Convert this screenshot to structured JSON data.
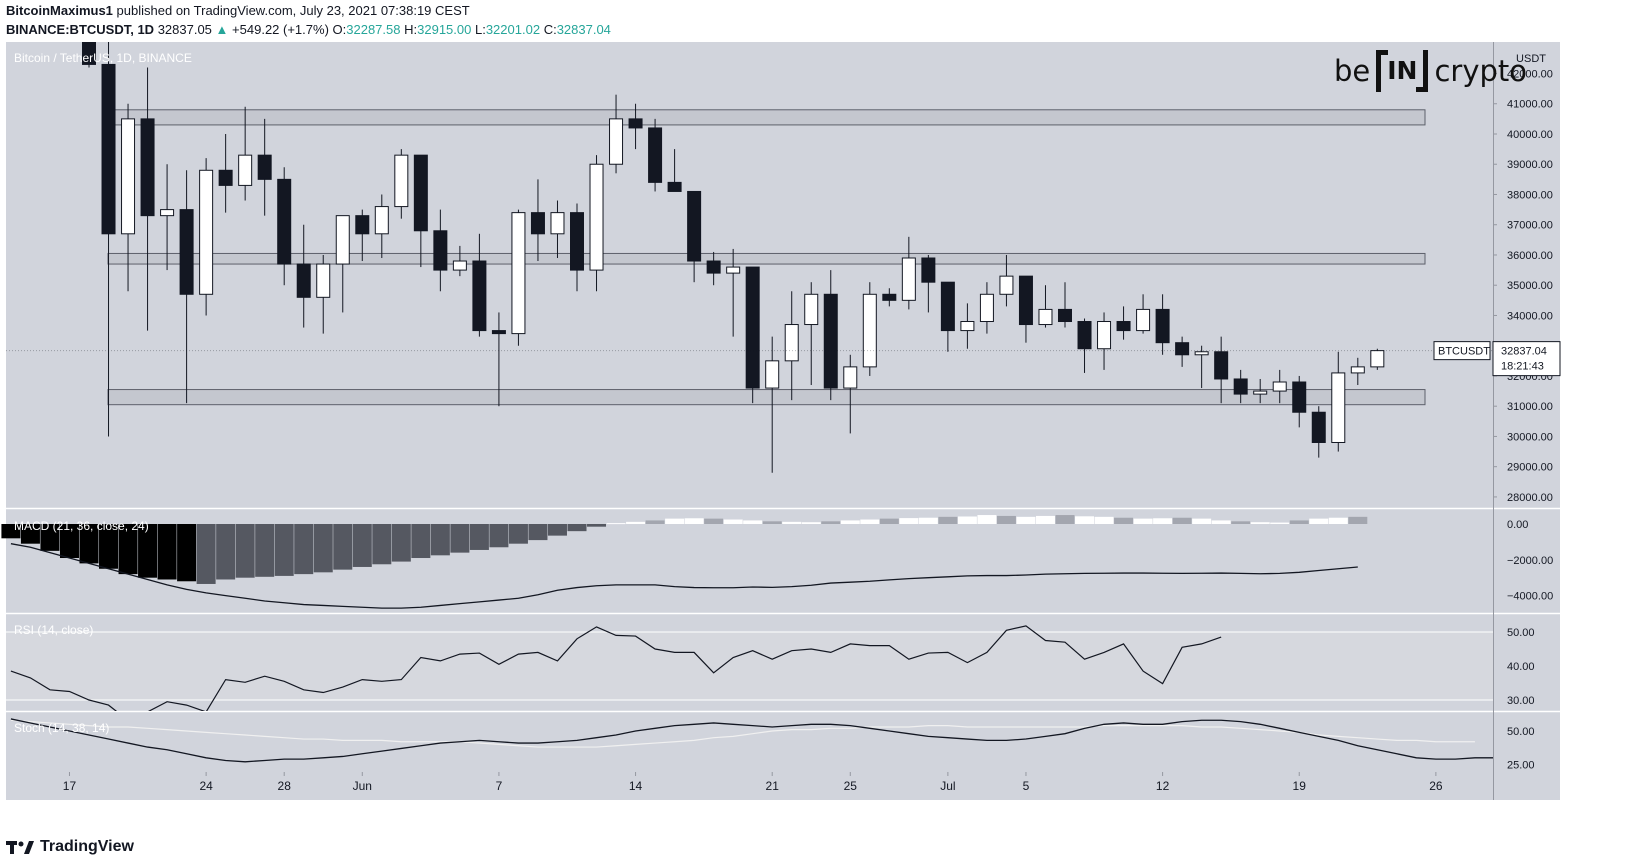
{
  "header": {
    "author": "BitcoinMaximus1",
    "published": "published on TradingView.com, July 23, 2021 07:38:19 CEST",
    "symbol": "BINANCE:BTCUSDT, 1D",
    "last": "32837.05",
    "change": "+549.22 (+1.7%)",
    "o_label": "O:",
    "o": "32287.58",
    "h_label": "H:",
    "h": "32915.00",
    "l_label": "L:",
    "l": "32201.02",
    "c_label": "C:",
    "c": "32837.04"
  },
  "pane_titles": {
    "main": "Bitcoin / TetherUS, 1D, BINANCE",
    "macd": "MACD (21, 36, close, 24)",
    "rsi": "RSI (14, close)",
    "stoch": "Stoch (14, 38, 14)"
  },
  "price_axis": {
    "unit": "USDT",
    "ticks": [
      "42000.00",
      "41000.00",
      "40000.00",
      "39000.00",
      "38000.00",
      "37000.00",
      "36000.00",
      "35000.00",
      "34000.00",
      "33000.00",
      "32000.00",
      "31000.00",
      "30000.00",
      "29000.00",
      "28000.00"
    ]
  },
  "price_label": {
    "symbol": "BTCUSDT",
    "value": "32837.04",
    "countdown": "18:21:43"
  },
  "macd_axis": [
    "0.00",
    "−2000.00",
    "−4000.00"
  ],
  "rsi_axis": [
    "50.00",
    "40.00",
    "30.00"
  ],
  "stoch_axis": [
    "50.00",
    "25.00"
  ],
  "time_axis": [
    {
      "label": "17",
      "idx": -1
    },
    {
      "label": "24",
      "idx": 6
    },
    {
      "label": "28",
      "idx": 10
    },
    {
      "label": "Jun",
      "idx": 14
    },
    {
      "label": "7",
      "idx": 21
    },
    {
      "label": "14",
      "idx": 28
    },
    {
      "label": "21",
      "idx": 35
    },
    {
      "label": "25",
      "idx": 39
    },
    {
      "label": "Jul",
      "idx": 44
    },
    {
      "label": "5",
      "idx": 48
    },
    {
      "label": "12",
      "idx": 55
    },
    {
      "label": "19",
      "idx": 62
    },
    {
      "label": "26",
      "idx": 69
    }
  ],
  "logo": {
    "left": "be",
    "middle": "IN",
    "right": "crypto"
  },
  "footer": {
    "brand": "TradingView"
  },
  "colors": {
    "bg": "#d1d4dc",
    "up": "#ffffff",
    "down": "#131722",
    "zone": "#c4c7cf"
  },
  "chart_data": {
    "type": "candlestick",
    "title": "Bitcoin / TetherUS, 1D, BINANCE",
    "ylim": [
      28000,
      42000
    ],
    "zones": [
      [
        40300,
        40800
      ],
      [
        35700,
        36050
      ],
      [
        31050,
        31550
      ]
    ],
    "candles": [
      {
        "o": 43500,
        "h": 44500,
        "l": 42200,
        "c": 42300
      },
      {
        "o": 42300,
        "h": 43200,
        "l": 30000,
        "c": 36700
      },
      {
        "o": 36700,
        "h": 41000,
        "l": 34800,
        "c": 40500
      },
      {
        "o": 40500,
        "h": 42200,
        "l": 33500,
        "c": 37300
      },
      {
        "o": 37300,
        "h": 39000,
        "l": 35500,
        "c": 37500
      },
      {
        "o": 37500,
        "h": 38800,
        "l": 31100,
        "c": 34700
      },
      {
        "o": 34700,
        "h": 39200,
        "l": 34000,
        "c": 38800
      },
      {
        "o": 38800,
        "h": 40000,
        "l": 37400,
        "c": 38300
      },
      {
        "o": 38300,
        "h": 40900,
        "l": 37800,
        "c": 39300
      },
      {
        "o": 39300,
        "h": 40500,
        "l": 37300,
        "c": 38500
      },
      {
        "o": 38500,
        "h": 38900,
        "l": 35000,
        "c": 35700
      },
      {
        "o": 35700,
        "h": 37000,
        "l": 33600,
        "c": 34600
      },
      {
        "o": 34600,
        "h": 36000,
        "l": 33400,
        "c": 35700
      },
      {
        "o": 35700,
        "h": 37300,
        "l": 34100,
        "c": 37300
      },
      {
        "o": 37300,
        "h": 37500,
        "l": 35800,
        "c": 36700
      },
      {
        "o": 36700,
        "h": 38000,
        "l": 35900,
        "c": 37600
      },
      {
        "o": 37600,
        "h": 39500,
        "l": 37200,
        "c": 39300
      },
      {
        "o": 39300,
        "h": 39300,
        "l": 35600,
        "c": 36800
      },
      {
        "o": 36800,
        "h": 37500,
        "l": 34800,
        "c": 35500
      },
      {
        "o": 35500,
        "h": 36300,
        "l": 35300,
        "c": 35800
      },
      {
        "o": 35800,
        "h": 36700,
        "l": 33300,
        "c": 33500
      },
      {
        "o": 33500,
        "h": 34100,
        "l": 31000,
        "c": 33400
      },
      {
        "o": 33400,
        "h": 37500,
        "l": 33000,
        "c": 37400
      },
      {
        "o": 37400,
        "h": 38500,
        "l": 35800,
        "c": 36700
      },
      {
        "o": 36700,
        "h": 37800,
        "l": 35900,
        "c": 37400
      },
      {
        "o": 37400,
        "h": 37700,
        "l": 34800,
        "c": 35500
      },
      {
        "o": 35500,
        "h": 39300,
        "l": 34800,
        "c": 39000
      },
      {
        "o": 39000,
        "h": 41300,
        "l": 38700,
        "c": 40500
      },
      {
        "o": 40500,
        "h": 41000,
        "l": 39500,
        "c": 40200
      },
      {
        "o": 40200,
        "h": 40500,
        "l": 38100,
        "c": 38400
      },
      {
        "o": 38400,
        "h": 39500,
        "l": 38100,
        "c": 38100
      },
      {
        "o": 38100,
        "h": 38100,
        "l": 35100,
        "c": 35800
      },
      {
        "o": 35800,
        "h": 36100,
        "l": 35000,
        "c": 35400
      },
      {
        "o": 35400,
        "h": 36200,
        "l": 33300,
        "c": 35600
      },
      {
        "o": 35600,
        "h": 35600,
        "l": 31100,
        "c": 31600
      },
      {
        "o": 31600,
        "h": 33300,
        "l": 28800,
        "c": 32500
      },
      {
        "o": 32500,
        "h": 34800,
        "l": 31200,
        "c": 33700
      },
      {
        "o": 33700,
        "h": 35100,
        "l": 31700,
        "c": 34700
      },
      {
        "o": 34700,
        "h": 35500,
        "l": 31200,
        "c": 31600
      },
      {
        "o": 31600,
        "h": 32700,
        "l": 30100,
        "c": 32300
      },
      {
        "o": 32300,
        "h": 35100,
        "l": 32000,
        "c": 34700
      },
      {
        "o": 34700,
        "h": 34900,
        "l": 34300,
        "c": 34500
      },
      {
        "o": 34500,
        "h": 36600,
        "l": 34200,
        "c": 35900
      },
      {
        "o": 35900,
        "h": 36000,
        "l": 34100,
        "c": 35100
      },
      {
        "o": 35100,
        "h": 35100,
        "l": 32800,
        "c": 33500
      },
      {
        "o": 33500,
        "h": 34400,
        "l": 32900,
        "c": 33800
      },
      {
        "o": 33800,
        "h": 35100,
        "l": 33400,
        "c": 34700
      },
      {
        "o": 34700,
        "h": 36000,
        "l": 34300,
        "c": 35300
      },
      {
        "o": 35300,
        "h": 35300,
        "l": 33100,
        "c": 33700
      },
      {
        "o": 33700,
        "h": 35000,
        "l": 33600,
        "c": 34200
      },
      {
        "o": 34200,
        "h": 35100,
        "l": 33600,
        "c": 33800
      },
      {
        "o": 33800,
        "h": 33900,
        "l": 32100,
        "c": 32900
      },
      {
        "o": 32900,
        "h": 34100,
        "l": 32200,
        "c": 33800
      },
      {
        "o": 33800,
        "h": 34300,
        "l": 33200,
        "c": 33500
      },
      {
        "o": 33500,
        "h": 34700,
        "l": 33400,
        "c": 34200
      },
      {
        "o": 34200,
        "h": 34700,
        "l": 32700,
        "c": 33100
      },
      {
        "o": 33100,
        "h": 33300,
        "l": 32300,
        "c": 32700
      },
      {
        "o": 32700,
        "h": 33000,
        "l": 31600,
        "c": 32800
      },
      {
        "o": 32800,
        "h": 33300,
        "l": 31100,
        "c": 31900
      },
      {
        "o": 31900,
        "h": 32200,
        "l": 31100,
        "c": 31400
      },
      {
        "o": 31400,
        "h": 31900,
        "l": 31100,
        "c": 31500
      },
      {
        "o": 31500,
        "h": 32200,
        "l": 31100,
        "c": 31800
      },
      {
        "o": 31800,
        "h": 32000,
        "l": 30300,
        "c": 30800
      },
      {
        "o": 30800,
        "h": 31000,
        "l": 29300,
        "c": 29800
      },
      {
        "o": 29800,
        "h": 32800,
        "l": 29500,
        "c": 32100
      },
      {
        "o": 32100,
        "h": 32600,
        "l": 31700,
        "c": 32300
      },
      {
        "o": 32300,
        "h": 32900,
        "l": 32200,
        "c": 32837
      }
    ],
    "macd_hist": [
      -800,
      -1100,
      -1500,
      -1900,
      -2200,
      -2500,
      -2800,
      -3000,
      -3100,
      -3200,
      -3350,
      -3100,
      -3000,
      -2950,
      -2900,
      -2800,
      -2700,
      -2550,
      -2400,
      -2250,
      -2100,
      -1900,
      -1750,
      -1600,
      -1450,
      -1300,
      -1100,
      -900,
      -650,
      -400,
      -150,
      50,
      120,
      200,
      300,
      320,
      300,
      250,
      200,
      150,
      120,
      100,
      150,
      200,
      250,
      300,
      330,
      350,
      400,
      420,
      500,
      450,
      400,
      450,
      500,
      430,
      400,
      350,
      300,
      320,
      350,
      300,
      200,
      150,
      100,
      80,
      200,
      300,
      350,
      400
    ],
    "macd_line": [
      -1100,
      -1300,
      -1600,
      -1900,
      -2200,
      -2500,
      -2800,
      -3100,
      -3400,
      -3650,
      -3850,
      -4000,
      -4150,
      -4300,
      -4400,
      -4500,
      -4550,
      -4600,
      -4650,
      -4700,
      -4700,
      -4650,
      -4550,
      -4450,
      -4350,
      -4250,
      -4150,
      -3950,
      -3700,
      -3550,
      -3450,
      -3400,
      -3400,
      -3400,
      -3500,
      -3550,
      -3560,
      -3560,
      -3520,
      -3540,
      -3500,
      -3420,
      -3300,
      -3250,
      -3200,
      -3120,
      -3050,
      -3000,
      -2950,
      -2900,
      -2880,
      -2880,
      -2850,
      -2800,
      -2780,
      -2760,
      -2750,
      -2740,
      -2740,
      -2750,
      -2760,
      -2750,
      -2740,
      -2760,
      -2780,
      -2760,
      -2700,
      -2600,
      -2500,
      -2400
    ],
    "rsi": [
      38.5,
      36.5,
      33,
      32.5,
      30,
      28.5,
      24,
      26.5,
      29.5,
      28.5,
      26.5,
      36,
      35.2,
      37,
      35.5,
      33,
      32.2,
      33.8,
      36,
      35.5,
      36,
      42.5,
      41.5,
      43.5,
      43.8,
      40.5,
      43.5,
      44,
      41.5,
      48,
      51.5,
      49,
      48.8,
      45,
      44,
      44,
      38,
      42.5,
      44.5,
      42,
      44.5,
      45,
      44,
      46.5,
      46,
      46,
      42,
      43.8,
      44,
      41,
      44,
      50.5,
      51.8,
      47.5,
      47,
      42,
      44,
      46.5,
      38.5,
      34.8,
      45.5,
      46.5,
      48.5
    ],
    "stoch_k": [
      59,
      56,
      53,
      50,
      47,
      44,
      41,
      38,
      36,
      33,
      30,
      28,
      27,
      28,
      29,
      29,
      30,
      31,
      33,
      35,
      37,
      39,
      41,
      42,
      43,
      42,
      41,
      41,
      42,
      43,
      45,
      47,
      50,
      52,
      54,
      55,
      56,
      55,
      54,
      53,
      54,
      55,
      55,
      54,
      52,
      50,
      48,
      46,
      45,
      44,
      43,
      43,
      44,
      46,
      48,
      52,
      55,
      56,
      55,
      55,
      57,
      58,
      58,
      57,
      55,
      52,
      49,
      46,
      43,
      39,
      36,
      33,
      30,
      29,
      29,
      30,
      30
    ],
    "stoch_d": [
      58,
      57,
      56,
      55,
      54,
      53,
      53,
      52,
      51,
      50,
      49,
      48,
      47,
      46,
      45,
      44,
      44,
      43,
      43,
      43,
      42,
      42,
      42,
      42,
      41,
      40,
      39,
      38,
      38,
      38,
      38,
      39,
      40,
      41,
      42,
      43,
      45,
      46,
      48,
      50,
      51,
      51,
      52,
      52,
      53,
      53,
      53,
      54,
      54,
      53,
      53,
      53,
      53,
      53,
      53,
      53,
      54,
      54,
      54,
      54,
      54,
      53,
      53,
      52,
      51,
      50,
      49,
      47,
      46,
      45,
      44,
      43,
      43,
      42,
      42,
      42
    ]
  }
}
